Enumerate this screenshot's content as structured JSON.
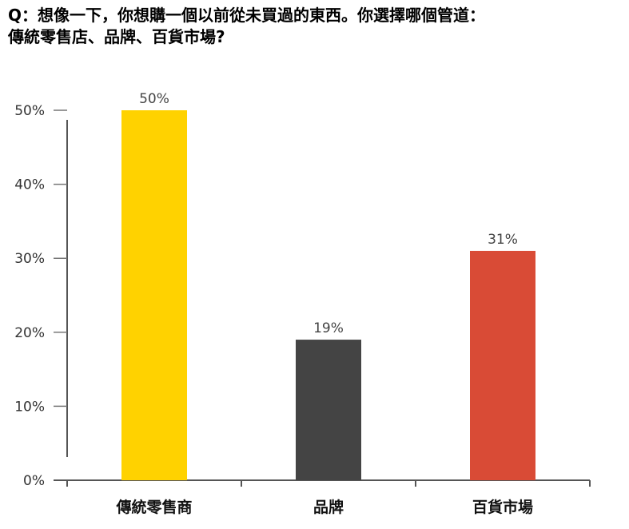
{
  "question": {
    "line1": "Q：想像一下，你想購一個以前從未買過的東西。你選擇哪個管道：",
    "line2": "傳統零售店、品牌、百貨市場?"
  },
  "chart_data": {
    "type": "bar",
    "categories": [
      "傳統零售商",
      "品牌",
      "百貨市場"
    ],
    "values": [
      50,
      19,
      31
    ],
    "data_labels": [
      "50%",
      "19%",
      "31%"
    ],
    "colors": [
      "#FFD200",
      "#444444",
      "#D94B36"
    ],
    "yticks": [
      0,
      10,
      20,
      30,
      40,
      50
    ],
    "ytick_labels": [
      "0%",
      "10%",
      "20%",
      "30%",
      "40%",
      "50%"
    ],
    "ylim": [
      0,
      50
    ],
    "grid": false,
    "legend": "none"
  }
}
